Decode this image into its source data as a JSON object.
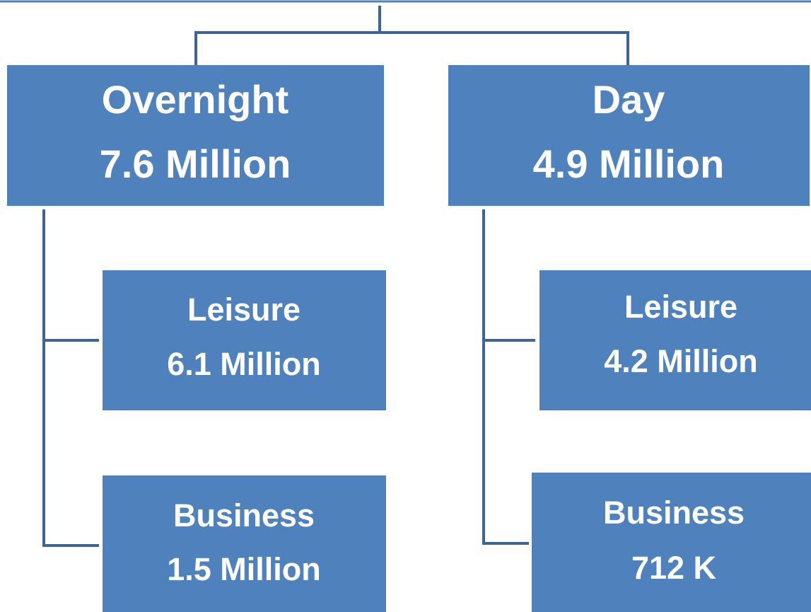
{
  "nodes": [
    {
      "label": "Overnight",
      "value": "7.6 Million"
    },
    {
      "label": "Day",
      "value": "4.9 Million"
    },
    {
      "label": "Leisure",
      "value": "6.1 Million"
    },
    {
      "label": "Business",
      "value": "1.5 Million"
    },
    {
      "label": "Leisure",
      "value": "4.2 Million"
    },
    {
      "label": "Business",
      "value": "712 K"
    }
  ]
}
